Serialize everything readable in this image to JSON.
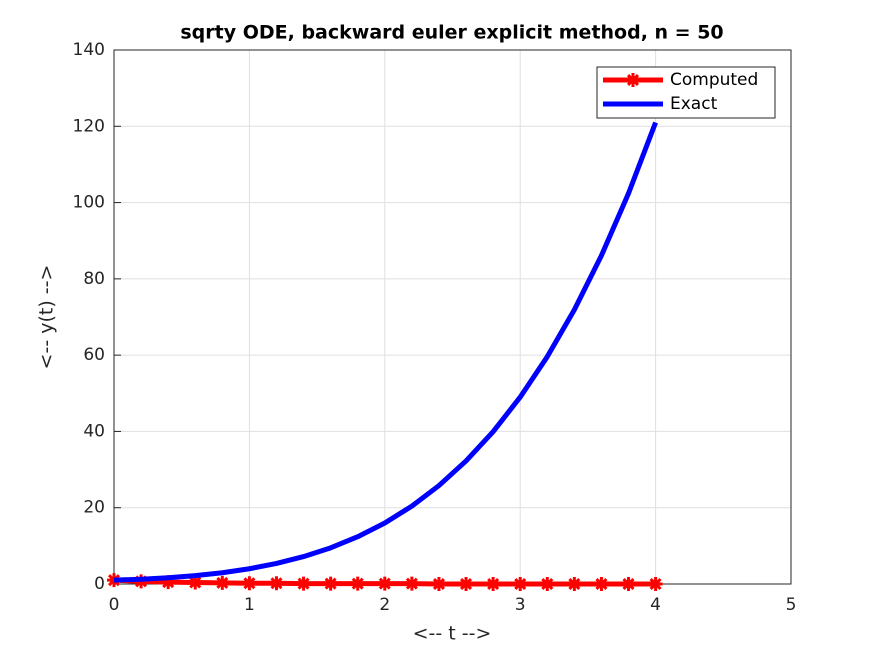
{
  "chart_data": {
    "type": "line",
    "title": "sqrty ODE, backward euler explicit method, n = 50",
    "x_label": "<-- t -->",
    "y_label": "<-- y(t) -->",
    "series": [
      {
        "name": "Computed",
        "color": "#ff0000",
        "marker": "star",
        "x": [
          0,
          0.2,
          0.4,
          0.6,
          0.8,
          1,
          1.2,
          1.4,
          1.6,
          1.8,
          2,
          2.2,
          2.4,
          2.6,
          2.8,
          3,
          3.2,
          3.4,
          3.6,
          3.8,
          4
        ],
        "values": [
          1,
          0.7,
          0.5,
          0.4,
          0.3,
          0.2,
          0.2,
          0.1,
          0.1,
          0.1,
          0.1,
          0.1,
          0,
          0,
          0,
          0,
          0,
          0,
          0,
          0,
          0
        ]
      },
      {
        "name": "Exact",
        "color": "#0000ff",
        "x": [
          0,
          0.2,
          0.4,
          0.6,
          0.8,
          1,
          1.2,
          1.4,
          1.6,
          1.8,
          2,
          2.2,
          2.4,
          2.6,
          2.8,
          3,
          3.2,
          3.4,
          3.6,
          3.8,
          4
        ],
        "values": [
          1,
          1.2544,
          1.6384,
          2.1904,
          2.9584,
          4,
          5.3824,
          7.1824,
          9.4864,
          12.3904,
          16,
          20.4304,
          25.8064,
          32.2624,
          39.9424,
          49,
          59.5984,
          71.9104,
          86.1184,
          102.4144,
          121
        ]
      }
    ],
    "xlim": [
      0,
      5
    ],
    "xticks": [
      0,
      1,
      2,
      3,
      4,
      5
    ],
    "ylim": [
      0,
      140
    ],
    "yticks": [
      0,
      20,
      40,
      60,
      80,
      100,
      120,
      140
    ],
    "grid": true,
    "legend": "northeast"
  }
}
